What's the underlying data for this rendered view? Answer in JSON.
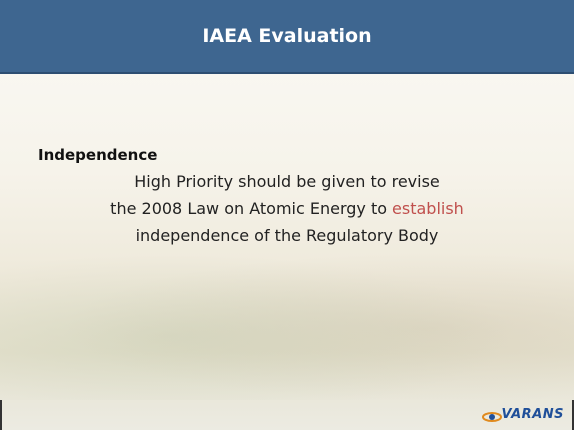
{
  "header": {
    "title": "IAEA Evaluation"
  },
  "content": {
    "heading": "Independence",
    "lines": [
      {
        "text": "High Priority should be given to revise"
      },
      {
        "text": "the 2008 Law on Atomic Energy to",
        "highlight": "establish"
      },
      {
        "text": "independence of the Regulatory Body"
      }
    ]
  },
  "footer": {
    "logo": "VARANS"
  }
}
